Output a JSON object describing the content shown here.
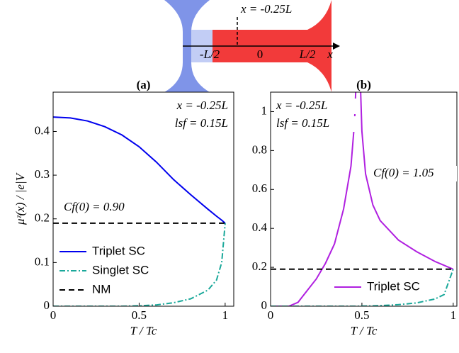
{
  "schematic": {
    "position_label": "x = -0.25L",
    "axis_labels": [
      "-L/2",
      "0",
      "L/2",
      "x"
    ]
  },
  "chart_data": [
    {
      "type": "line",
      "title": "(a)",
      "xlabel": "T / Tc",
      "ylabel": "μᶻ(x) / |e|V",
      "annotations": [
        {
          "text": "x = -0.25L",
          "color": "#000000"
        },
        {
          "text": "lsf =  0.15L",
          "color": "#000000"
        },
        {
          "text": "Cf(0) = 0.90",
          "color": "#0000ee"
        }
      ],
      "x": [
        0,
        0.1,
        0.2,
        0.3,
        0.4,
        0.5,
        0.6,
        0.7,
        0.8,
        0.9,
        0.95,
        0.98,
        1
      ],
      "series": [
        {
          "name": "Triplet SC",
          "color": "#0000ee",
          "style": "solid",
          "values": [
            0.433,
            0.431,
            0.424,
            0.411,
            0.392,
            0.365,
            0.33,
            0.29,
            0.255,
            0.222,
            0.206,
            0.197,
            0.19
          ]
        },
        {
          "name": "Singlet SC",
          "color": "#1aa89a",
          "style": "dashdot",
          "values": [
            0,
            0,
            0,
            0,
            0,
            0.001,
            0.003,
            0.008,
            0.017,
            0.037,
            0.06,
            0.1,
            0.19
          ]
        },
        {
          "name": "NM",
          "color": "#000000",
          "style": "dashed",
          "values": [
            0.19,
            0.19,
            0.19,
            0.19,
            0.19,
            0.19,
            0.19,
            0.19,
            0.19,
            0.19,
            0.19,
            0.19,
            0.19
          ]
        }
      ],
      "xlim": [
        0,
        1.05
      ],
      "xticks": [
        0,
        0.5,
        1
      ],
      "ylim": [
        0,
        0.49
      ],
      "yticks": [
        0,
        0.1,
        0.2,
        0.3,
        0.4
      ]
    },
    {
      "type": "line",
      "title": "(b)",
      "xlabel": "T / Tc",
      "annotations": [
        {
          "text": "x = -0.25L",
          "color": "#000000"
        },
        {
          "text": "lsf =  0.15L",
          "color": "#000000"
        },
        {
          "text": "Cf(0) = 1.05",
          "color": "#b020e0"
        }
      ],
      "x": [
        0,
        0.1,
        0.15,
        0.2,
        0.25,
        0.3,
        0.35,
        0.4,
        0.44,
        0.46,
        0.47,
        0.48,
        0.49,
        0.5,
        0.52,
        0.56,
        0.6,
        0.7,
        0.8,
        0.9,
        0.95,
        1
      ],
      "series": [
        {
          "name": "Triplet SC",
          "color": "#b020e0",
          "style": "solid",
          "values": [
            0,
            0,
            0.02,
            0.08,
            0.14,
            0.22,
            0.32,
            0.5,
            0.72,
            0.95,
            1.2,
            null,
            1.2,
            0.9,
            0.68,
            0.52,
            0.44,
            0.34,
            0.28,
            0.23,
            0.21,
            0.19
          ]
        },
        {
          "color": "#1aa89a",
          "style": "dashdot",
          "values": [
            0,
            0,
            0,
            0,
            0,
            0,
            0,
            0,
            0,
            0,
            0,
            0,
            0,
            0.001,
            0.001,
            0.002,
            0.003,
            0.008,
            0.017,
            0.037,
            0.06,
            0.19
          ]
        },
        {
          "color": "#000000",
          "style": "dashed",
          "values": [
            0.19,
            0.19,
            0.19,
            0.19,
            0.19,
            0.19,
            0.19,
            0.19,
            0.19,
            0.19,
            0.19,
            0.19,
            0.19,
            0.19,
            0.19,
            0.19,
            0.19,
            0.19,
            0.19,
            0.19,
            0.19,
            0.19
          ]
        }
      ],
      "xlim": [
        0,
        1.02
      ],
      "xticks": [
        0,
        0.5,
        1
      ],
      "ylim": [
        0,
        1.1
      ],
      "yticks": [
        0,
        0.2,
        0.4,
        0.6,
        0.8,
        1
      ]
    }
  ]
}
